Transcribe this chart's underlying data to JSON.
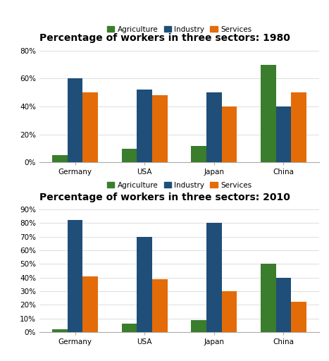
{
  "title_1980": "Percentage of workers in three sectors: 1980",
  "title_2010": "Percentage of workers in three sectors: 2010",
  "countries": [
    "Germany",
    "USA",
    "Japan",
    "China"
  ],
  "sectors": [
    "Agriculture",
    "Industry",
    "Services"
  ],
  "colors": [
    "#3a7d2c",
    "#1f4e79",
    "#e36c09"
  ],
  "data_1980": {
    "Agriculture": [
      5,
      10,
      12,
      70
    ],
    "Industry": [
      60,
      52,
      50,
      40
    ],
    "Services": [
      50,
      48,
      40,
      50
    ]
  },
  "data_2010": {
    "Agriculture": [
      2,
      6,
      9,
      50
    ],
    "Industry": [
      82,
      70,
      80,
      40
    ],
    "Services": [
      41,
      39,
      30,
      22
    ]
  },
  "ylim_1980": [
    0,
    80
  ],
  "ylim_2010": [
    0,
    90
  ],
  "yticks_1980": [
    0,
    20,
    40,
    60,
    80
  ],
  "yticks_2010": [
    0,
    10,
    20,
    30,
    40,
    50,
    60,
    70,
    80,
    90
  ],
  "bg_color": "#ffffff",
  "title_fontsize": 10,
  "legend_fontsize": 7.5,
  "tick_fontsize": 7.5,
  "bar_width": 0.22
}
